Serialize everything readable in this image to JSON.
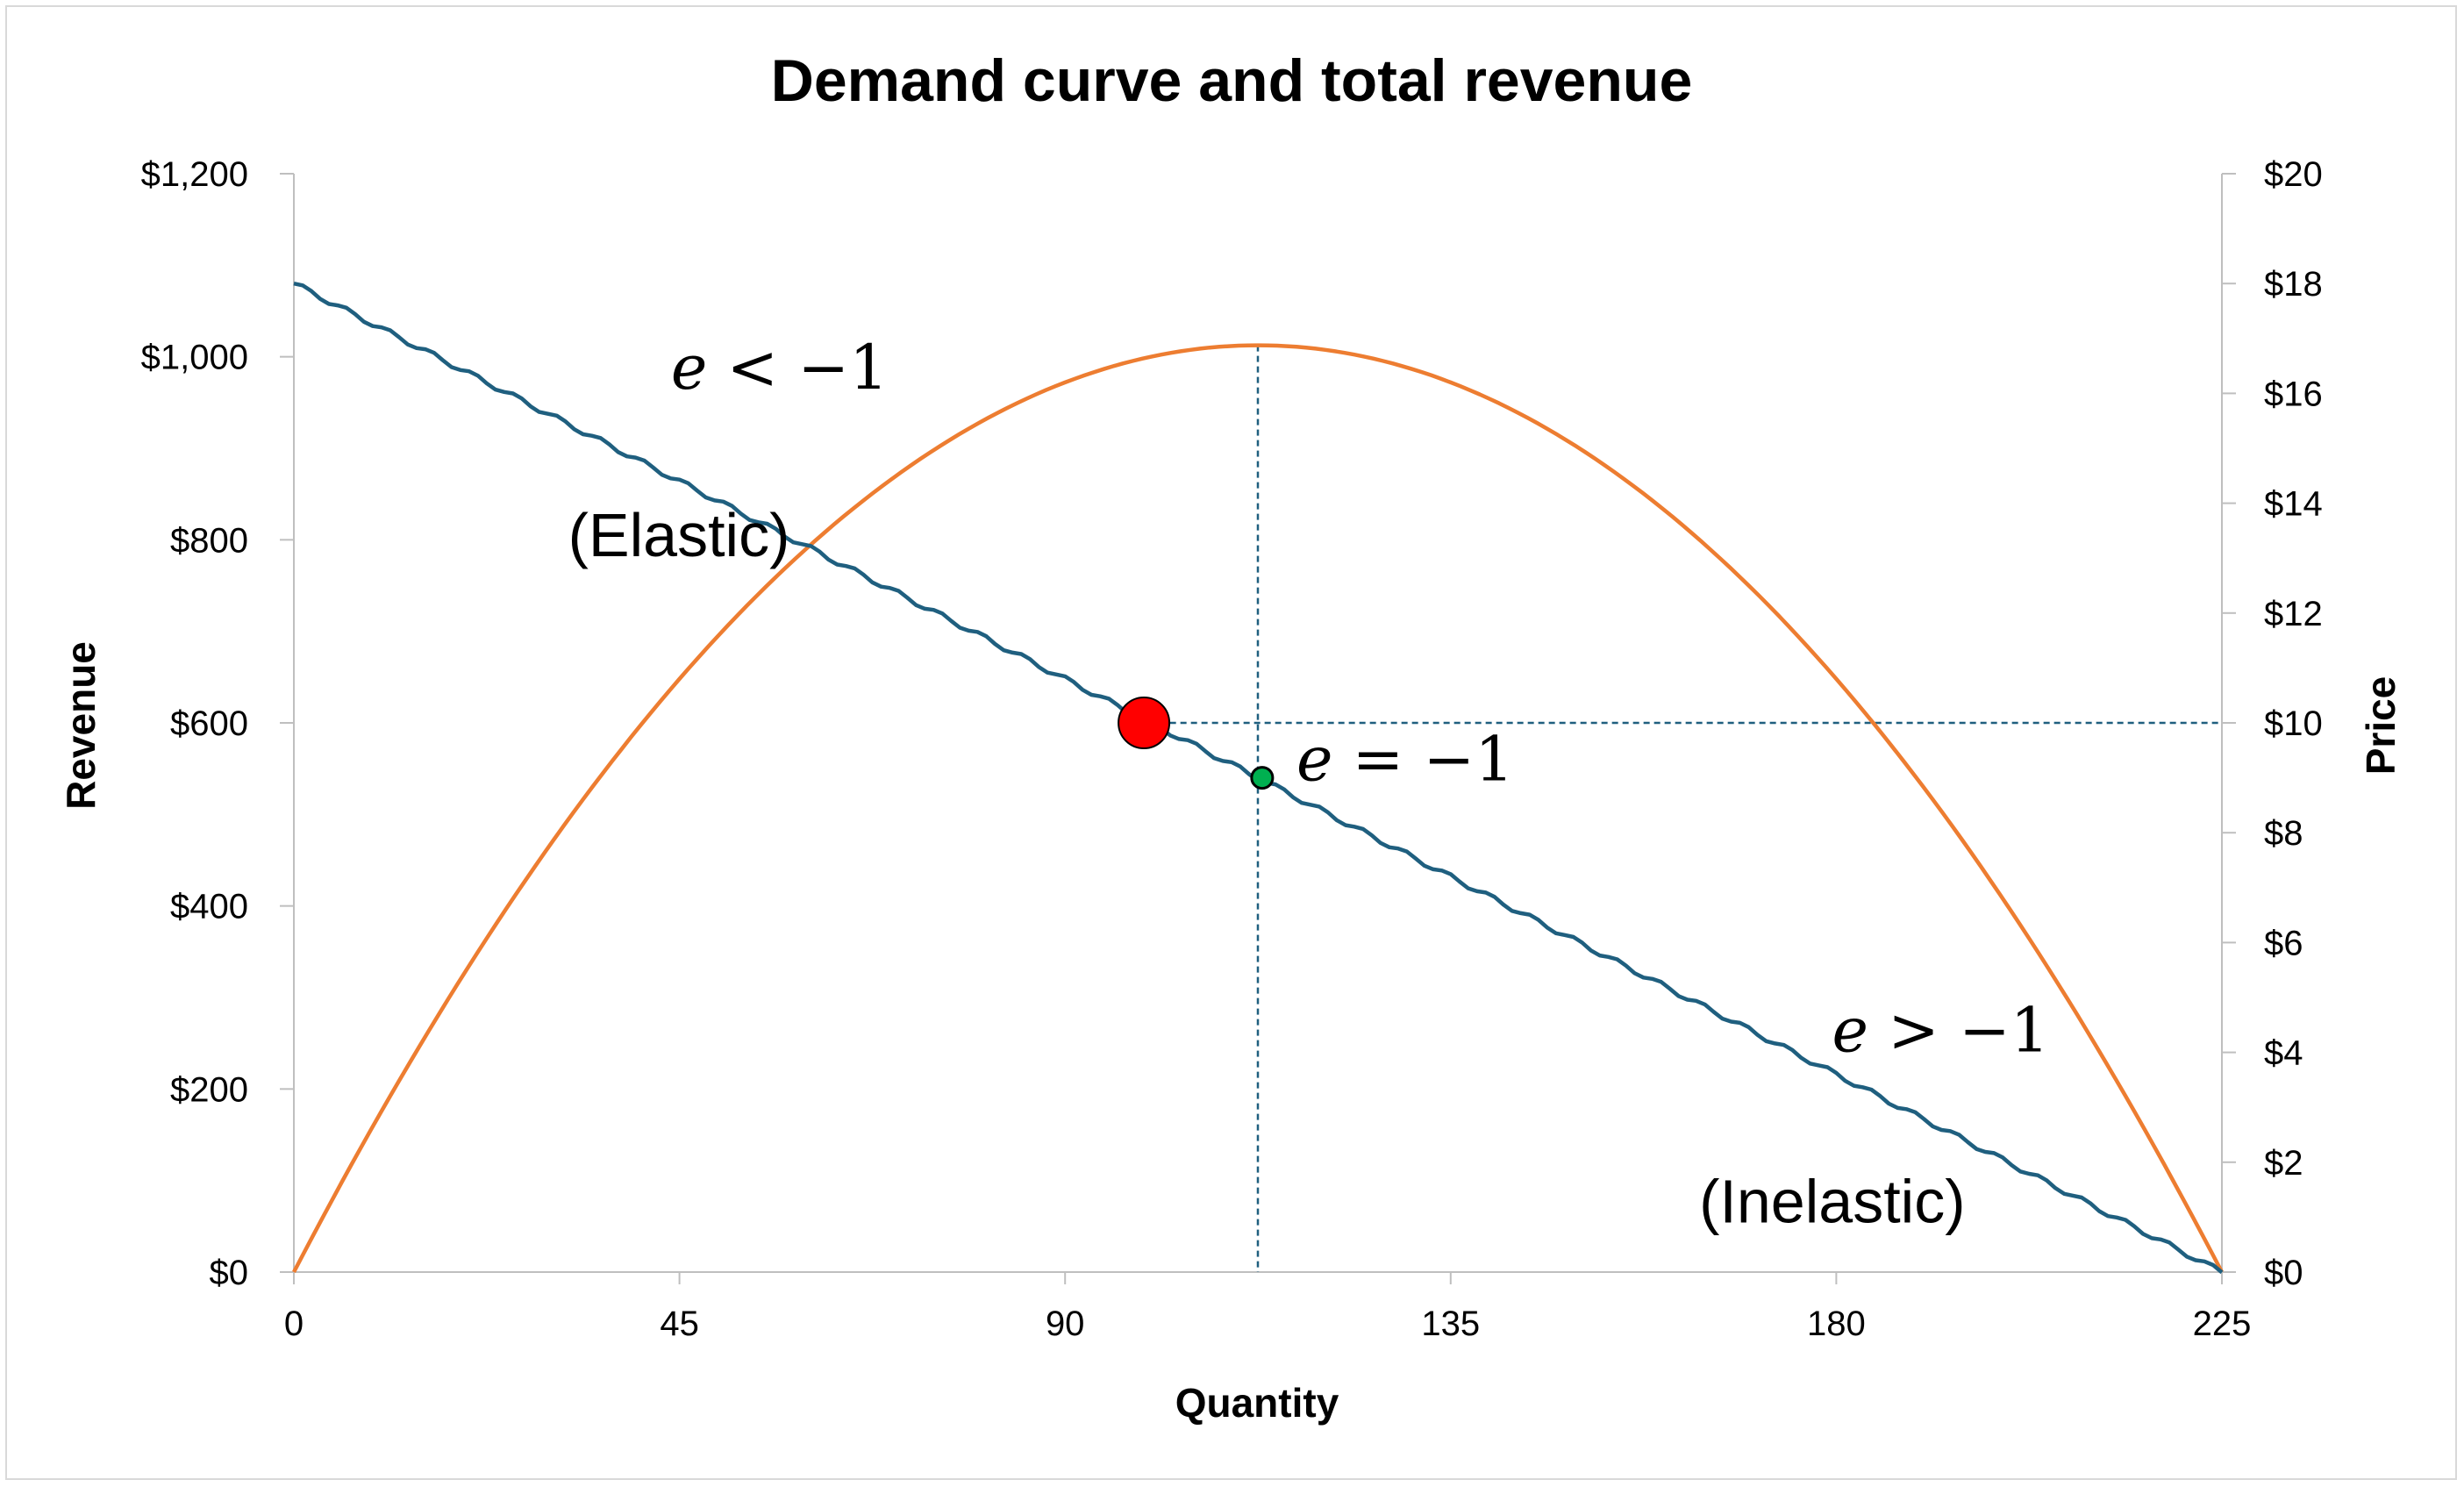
{
  "chart_data": {
    "type": "line",
    "title": "Demand curve and total revenue",
    "xlabel": "Quantity",
    "ylabel": "Revenue",
    "y2label": "Price",
    "xlim": [
      0,
      225
    ],
    "ylim": [
      0,
      1200
    ],
    "y2lim": [
      0,
      20
    ],
    "xticks": [
      0,
      45,
      90,
      135,
      180,
      225
    ],
    "xtick_labels": [
      "0",
      "45",
      "90",
      "135",
      "180",
      "225"
    ],
    "yticks": [
      0,
      200,
      400,
      600,
      800,
      1000,
      1200
    ],
    "ytick_labels": [
      "$0",
      "$200",
      "$400",
      "$600",
      "$800",
      "$1,000",
      "$1,200"
    ],
    "y2ticks": [
      0,
      2,
      4,
      6,
      8,
      10,
      12,
      14,
      16,
      18,
      20
    ],
    "y2tick_labels": [
      "$0",
      "$2",
      "$4",
      "$6",
      "$8",
      "$10",
      "$12",
      "$14",
      "$16",
      "$18",
      "$20"
    ],
    "grid": false,
    "legend": "none",
    "series": [
      {
        "axis": "left",
        "color": "#ED7D31",
        "x": [
          0,
          11.25,
          22.5,
          33.75,
          45,
          56.25,
          67.5,
          78.75,
          90,
          101.25,
          112.5,
          123.75,
          135,
          146.25,
          157.5,
          168.75,
          180,
          191.25,
          202.5,
          213.75,
          225
        ],
        "values": [
          0,
          192.4,
          364.5,
          516.4,
          648,
          759.4,
          850.5,
          921.4,
          972,
          1002.4,
          1012.5,
          1002.4,
          972,
          921.4,
          850.5,
          759.4,
          648,
          516.4,
          364.5,
          192.4,
          0
        ]
      },
      {
        "axis": "right",
        "color": "#1F5F7F",
        "x": [
          0,
          11.25,
          22.5,
          33.75,
          45,
          56.25,
          67.5,
          78.75,
          90,
          101.25,
          112.5,
          123.75,
          135,
          146.25,
          157.5,
          168.75,
          180,
          191.25,
          202.5,
          213.75,
          225
        ],
        "values": [
          18,
          17.1,
          16.2,
          15.3,
          14.4,
          13.5,
          12.6,
          11.7,
          10.8,
          9.9,
          9,
          8.1,
          7.2,
          6.3,
          5.4,
          4.5,
          3.6,
          2.7,
          1.8,
          0.9,
          0
        ]
      }
    ],
    "points": [
      {
        "x": 99.2,
        "y2": 10,
        "color": "#FF0000"
      },
      {
        "x": 113,
        "y2": 9,
        "color": "#00B050"
      }
    ],
    "reference_lines": [
      {
        "orientation": "vertical",
        "x": 112.5,
        "from_y": 0,
        "to_y": 1012.5,
        "color": "#1F5F7F"
      },
      {
        "orientation": "horizontal",
        "y2": 10,
        "from_x": 101,
        "to_x": 225,
        "color": "#1F5F7F"
      }
    ],
    "annotations": [
      {
        "x": 44,
        "y": 965,
        "var": "e",
        "rel": " < −1"
      },
      {
        "x": 32,
        "y": 782,
        "text": "(Elastic)"
      },
      {
        "x": 117,
        "y": 537,
        "var": "e",
        "rel": " = −1"
      },
      {
        "x": 179.5,
        "y": 241,
        "var": "e",
        "rel": " > −1"
      },
      {
        "x": 164,
        "y": 54,
        "text": "(Inelastic)"
      }
    ]
  }
}
